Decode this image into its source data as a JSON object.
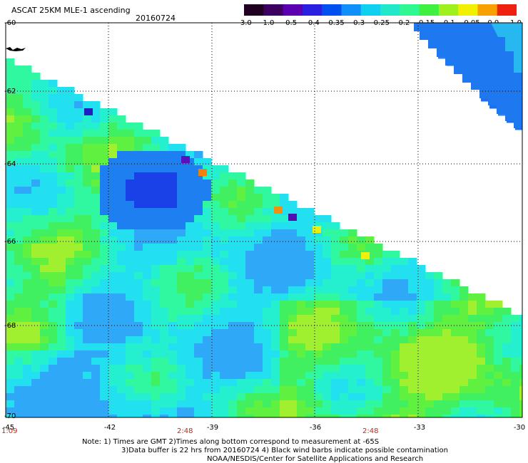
{
  "header": {
    "title": "ASCAT 25KM MLE-1 ascending",
    "date": "20160724"
  },
  "colorbar": {
    "tick_labels": [
      "-3.0",
      "-1.0",
      "-0.5",
      "-0.4",
      "-0.35",
      "-0.3",
      "-0.25",
      "-0.2",
      "-0.15",
      "-0.1",
      "-0.05",
      "0.0",
      "1.0"
    ],
    "colors": [
      "#200020",
      "#3c0060",
      "#5a00b0",
      "#2a1ee0",
      "#0050f0",
      "#1090f8",
      "#10d0f0",
      "#20e8c8",
      "#30f890",
      "#40f040",
      "#a0f020",
      "#f0f000",
      "#f8a000",
      "#f02010"
    ]
  },
  "map": {
    "lat_labels": [
      "-60",
      "-62",
      "-64",
      "-66",
      "-68",
      "-70"
    ],
    "lon_labels": [
      "-45",
      "-42",
      "-39",
      "-36",
      "-33",
      "-30"
    ],
    "time_labels": [
      {
        "text": "1:09",
        "lon": -45
      },
      {
        "text": "2:48",
        "lon": -39.6
      },
      {
        "text": "2:48",
        "lon": -35.7
      }
    ]
  },
  "footer": {
    "note_line1": "Note: 1) Times are GMT 2)Times along bottom correspond to measurement at -65S",
    "note_line2": "3)Data buffer is 22 hrs from 20160724 4) Black wind barbs indicate possible contamination",
    "note_line3": "NOAA/NESDIS/Center for Satellite Applications and Research"
  }
}
